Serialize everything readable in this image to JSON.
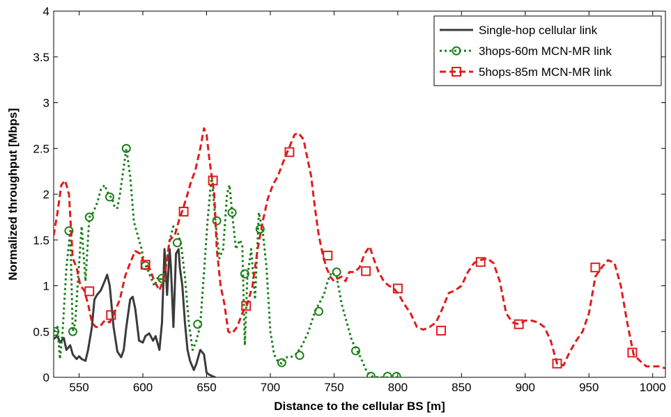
{
  "colors": {
    "single": "#3a3a3a",
    "three": "#1a7f1a",
    "five": "#e01b1b"
  },
  "chart_data": {
    "type": "line",
    "title": "",
    "xlabel": "Distance to the cellular BS [m]",
    "ylabel": "Normalized throughput [Mbps]",
    "xlim": [
      530,
      1010
    ],
    "ylim": [
      0,
      4
    ],
    "xticks": [
      550,
      600,
      650,
      700,
      750,
      800,
      850,
      900,
      950,
      1000
    ],
    "yticks": [
      0,
      0.5,
      1,
      1.5,
      2,
      2.5,
      3,
      3.5,
      4
    ],
    "grid": false,
    "legend_position": "top-right",
    "series": [
      {
        "name": "Single-hop cellular link",
        "style": "solid",
        "marker": "none",
        "x": [
          530,
          533,
          535,
          538,
          540,
          543,
          545,
          548,
          550,
          552,
          555,
          557,
          560,
          562,
          564,
          567,
          570,
          572,
          574,
          577,
          580,
          583,
          585,
          587,
          590,
          592,
          594,
          597,
          600,
          602,
          605,
          608,
          610,
          613,
          615,
          617,
          619,
          621,
          622,
          624,
          626,
          628,
          629,
          631,
          633,
          635,
          637,
          640,
          642,
          645,
          648,
          650,
          652,
          655,
          657
        ],
        "y": [
          0.42,
          0.45,
          0.38,
          0.43,
          0.3,
          0.35,
          0.25,
          0.2,
          0.23,
          0.2,
          0.18,
          0.3,
          0.55,
          0.85,
          0.9,
          0.95,
          1.05,
          1.12,
          1.0,
          0.55,
          0.28,
          0.22,
          0.3,
          0.55,
          0.85,
          0.88,
          0.75,
          0.4,
          0.38,
          0.45,
          0.48,
          0.4,
          0.45,
          0.3,
          0.6,
          1.4,
          0.9,
          1.4,
          1.2,
          0.55,
          1.35,
          1.4,
          1.2,
          1.0,
          0.6,
          0.3,
          0.18,
          0.08,
          0.15,
          0.3,
          0.25,
          0.05,
          0.03,
          0.01,
          0.0
        ],
        "markers_x": [],
        "markers_y": []
      },
      {
        "name": "3hops-60m MCN-MR link",
        "style": "dotted",
        "marker": "circle",
        "x": [
          530,
          533,
          535,
          537,
          540,
          543,
          545,
          547,
          549,
          552,
          555,
          558,
          561,
          564,
          567,
          570,
          573,
          576,
          578,
          580,
          582,
          584,
          587,
          590,
          593,
          596,
          599,
          601,
          603,
          606,
          609,
          612,
          615,
          618,
          621,
          624,
          627,
          630,
          633,
          636,
          639,
          642,
          645,
          648,
          651,
          654,
          657,
          660,
          663,
          666,
          668,
          670,
          673,
          676,
          678,
          680,
          682,
          685,
          688,
          691,
          694,
          697,
          700,
          703,
          706,
          709,
          712,
          716,
          720,
          725,
          730,
          735,
          738,
          742,
          745,
          748,
          752,
          756,
          760,
          764,
          768,
          772,
          776,
          780,
          785,
          790,
          795,
          800
        ],
        "y": [
          0.5,
          0.55,
          0.2,
          0.5,
          1.2,
          1.6,
          0.5,
          0.6,
          1.05,
          1.65,
          1.05,
          1.75,
          1.8,
          1.9,
          2.05,
          2.1,
          2.0,
          1.95,
          1.85,
          1.85,
          2.0,
          2.2,
          2.5,
          2.2,
          1.7,
          1.55,
          1.4,
          1.25,
          1.2,
          1.1,
          1.0,
          1.1,
          1.05,
          1.2,
          1.5,
          1.65,
          1.6,
          1.45,
          1.1,
          0.6,
          0.3,
          0.4,
          0.57,
          1.15,
          1.75,
          2.2,
          1.7,
          1.3,
          1.4,
          2.0,
          2.1,
          1.8,
          1.4,
          1.5,
          1.45,
          0.35,
          1.1,
          1.4,
          0.85,
          1.8,
          1.6,
          1.2,
          0.5,
          0.25,
          0.17,
          0.15,
          0.22,
          0.22,
          0.25,
          0.35,
          0.5,
          0.72,
          0.8,
          0.9,
          1.05,
          1.15,
          1.1,
          0.8,
          0.6,
          0.4,
          0.3,
          0.18,
          0.05,
          0.01,
          0.0,
          0.0,
          0.0,
          0.0
        ],
        "markers_x": [
          531,
          542,
          545,
          558,
          574,
          587,
          602,
          615,
          627,
          643,
          658,
          670,
          680,
          692,
          709,
          723,
          738,
          752,
          767,
          779,
          792,
          799
        ],
        "markers_y": [
          0.5,
          1.6,
          0.5,
          1.75,
          1.97,
          2.5,
          1.22,
          1.08,
          1.47,
          0.58,
          1.71,
          1.8,
          1.13,
          1.62,
          0.16,
          0.24,
          0.72,
          1.15,
          0.29,
          0.01,
          0.01,
          0.01
        ]
      },
      {
        "name": "5hops-85m MCN-MR link",
        "style": "dashed",
        "marker": "square",
        "x": [
          530,
          533,
          536,
          539,
          542,
          545,
          548,
          551,
          554,
          557,
          560,
          563,
          566,
          570,
          574,
          578,
          582,
          586,
          590,
          594,
          598,
          601,
          605,
          609,
          613,
          617,
          621,
          625,
          628,
          631,
          635,
          638,
          641,
          645,
          648,
          650,
          652,
          654,
          656,
          658,
          661,
          664,
          667,
          670,
          674,
          678,
          682,
          686,
          690,
          694,
          698,
          702,
          706,
          710,
          713,
          716,
          719,
          722,
          726,
          729,
          732,
          735,
          738,
          741,
          744,
          747,
          750,
          753,
          756,
          759,
          762,
          766,
          770,
          774,
          778,
          781,
          785,
          789,
          793,
          797,
          801,
          805,
          810,
          815,
          820,
          825,
          830,
          835,
          840,
          845,
          850,
          855,
          860,
          865,
          870,
          875,
          880,
          885,
          890,
          895,
          900,
          905,
          910,
          915,
          920,
          925,
          930,
          935,
          940,
          945,
          950,
          955,
          960,
          965,
          970,
          975,
          980,
          985,
          990,
          995,
          1000,
          1005,
          1010
        ],
        "y": [
          1.55,
          1.8,
          2.1,
          2.15,
          2.0,
          1.3,
          1.2,
          1.0,
          0.95,
          0.8,
          0.6,
          0.55,
          0.55,
          0.62,
          0.6,
          0.72,
          0.85,
          1.1,
          1.25,
          1.38,
          1.35,
          1.25,
          1.2,
          1.05,
          0.95,
          1.1,
          1.5,
          1.55,
          1.7,
          1.82,
          2.0,
          2.15,
          2.25,
          2.5,
          2.72,
          2.65,
          2.4,
          2.2,
          2.0,
          1.4,
          1.0,
          0.8,
          0.5,
          0.48,
          0.55,
          0.7,
          0.8,
          1.0,
          1.4,
          1.7,
          1.95,
          2.1,
          2.2,
          2.35,
          2.45,
          2.55,
          2.65,
          2.67,
          2.6,
          2.4,
          2.2,
          1.85,
          1.55,
          1.35,
          1.2,
          1.1,
          1.05,
          1.08,
          1.1,
          1.05,
          1.15,
          1.15,
          1.2,
          1.35,
          1.43,
          1.3,
          1.15,
          1.05,
          1.0,
          0.97,
          0.9,
          0.8,
          0.7,
          0.55,
          0.52,
          0.55,
          0.6,
          0.75,
          0.92,
          0.95,
          1.0,
          1.15,
          1.25,
          1.28,
          1.3,
          1.25,
          1.05,
          0.7,
          0.6,
          0.58,
          0.62,
          0.62,
          0.6,
          0.55,
          0.4,
          0.15,
          0.13,
          0.28,
          0.4,
          0.5,
          0.7,
          1.1,
          1.2,
          1.28,
          1.25,
          1.0,
          0.6,
          0.25,
          0.18,
          0.12,
          0.12,
          0.12,
          0.1
        ],
        "markers_x": [
          558,
          575,
          602,
          632,
          655,
          681,
          715,
          745,
          775,
          800,
          834,
          865,
          895,
          925,
          955,
          984
        ],
        "markers_y": [
          0.94,
          0.68,
          1.23,
          1.81,
          2.15,
          0.78,
          2.46,
          1.33,
          1.16,
          0.97,
          0.51,
          1.26,
          0.58,
          0.15,
          1.2,
          0.27
        ]
      }
    ]
  }
}
